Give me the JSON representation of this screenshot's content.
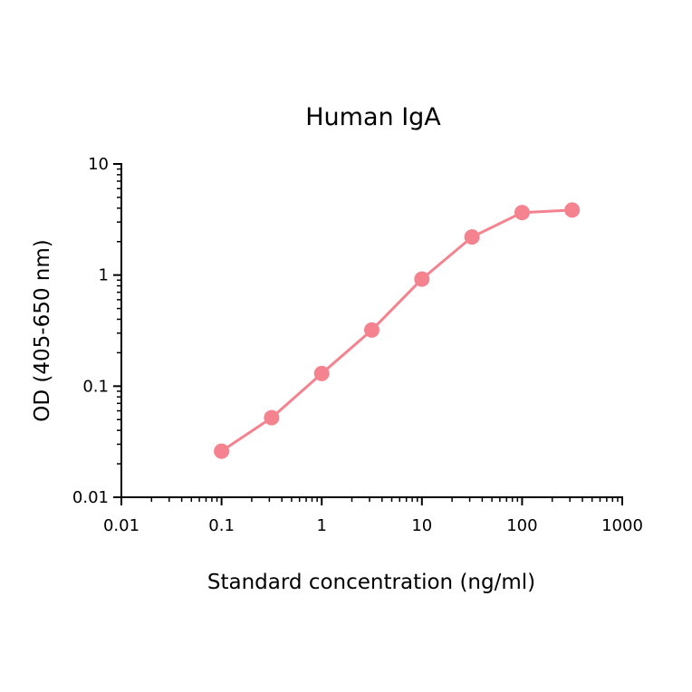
{
  "chart_data": {
    "type": "line",
    "title": "Human IgA",
    "xlabel": "Standard concentration (ng/ml)",
    "ylabel": "OD (405-650 nm)",
    "xscale": "log",
    "yscale": "log",
    "xlim": [
      0.01,
      1000
    ],
    "ylim": [
      0.01,
      10
    ],
    "xticks": [
      {
        "value": 0.01,
        "label": "0.01"
      },
      {
        "value": 0.1,
        "label": "0.1"
      },
      {
        "value": 1,
        "label": "1"
      },
      {
        "value": 10,
        "label": "10"
      },
      {
        "value": 100,
        "label": "100"
      },
      {
        "value": 1000,
        "label": "1000"
      }
    ],
    "yticks": [
      {
        "value": 0.01,
        "label": "0.01"
      },
      {
        "value": 0.1,
        "label": "0.1"
      },
      {
        "value": 1,
        "label": "1"
      },
      {
        "value": 10,
        "label": "10"
      }
    ],
    "grid": false,
    "series": [
      {
        "color": "#f4828f",
        "x": [
          0.1,
          0.316,
          1,
          3.16,
          10,
          31.6,
          100,
          316
        ],
        "y": [
          0.026,
          0.052,
          0.13,
          0.32,
          0.92,
          2.2,
          3.65,
          3.85
        ]
      }
    ]
  }
}
